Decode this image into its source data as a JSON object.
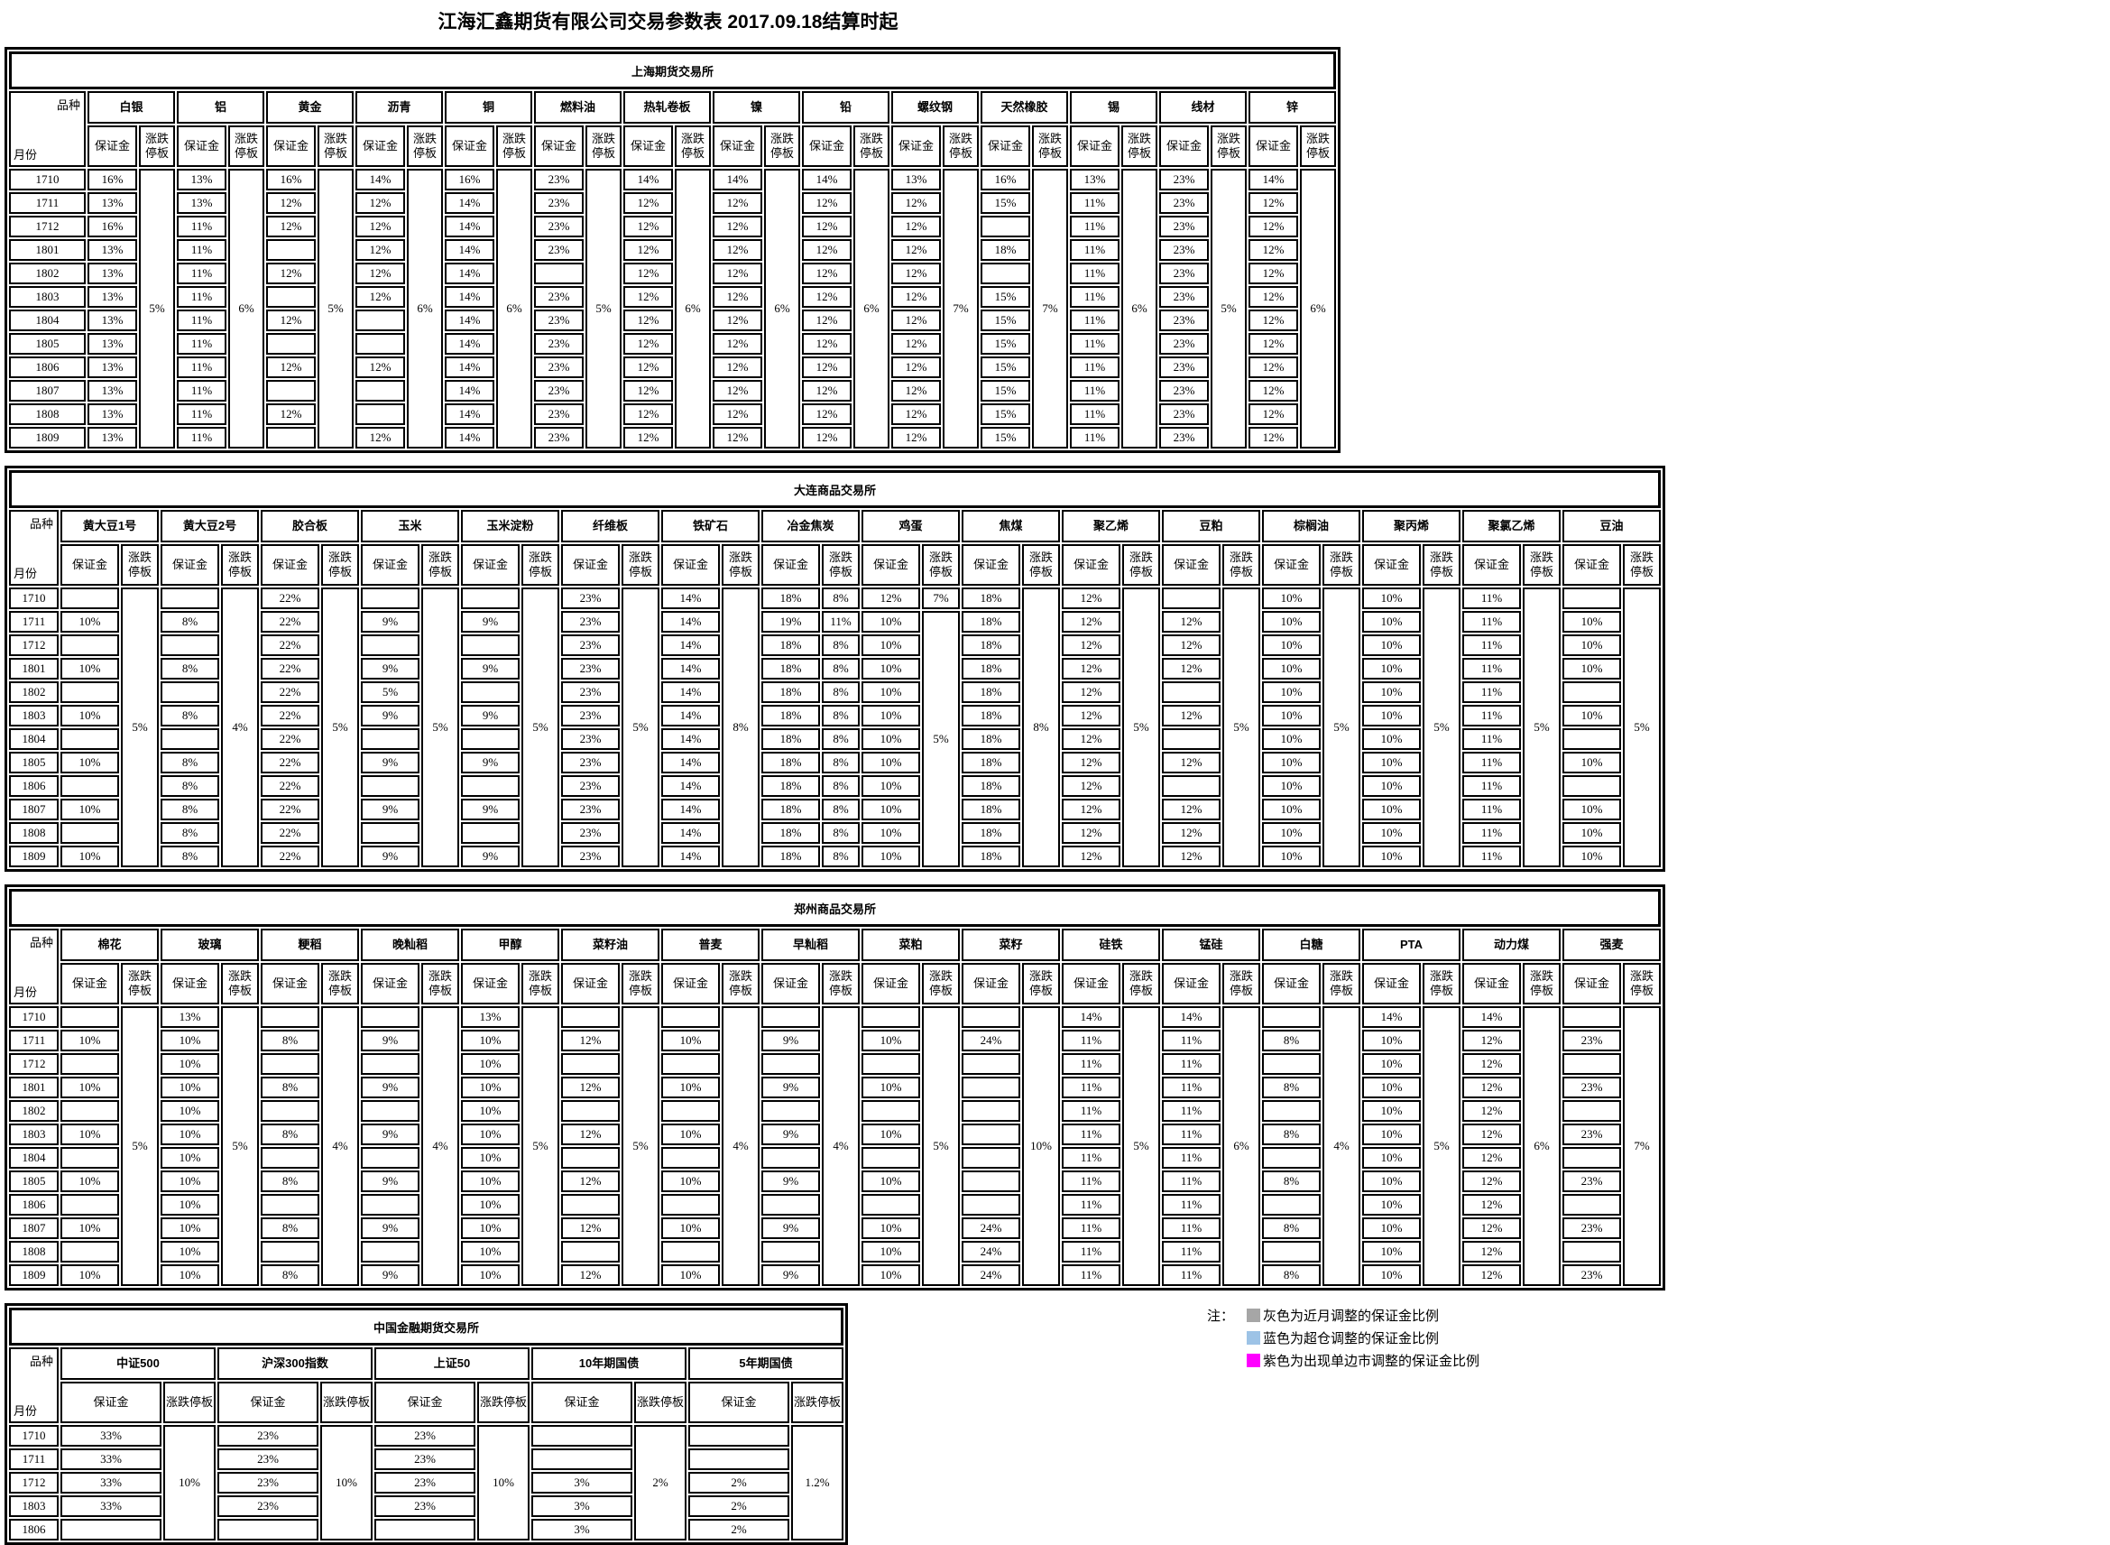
{
  "title": "江海汇鑫期货有限公司交易参数表 2017.09.18结算时起",
  "corner": {
    "top": "品种",
    "bottom": "月份"
  },
  "subheaders": {
    "margin": "保证金",
    "limit": "涨跌停板"
  },
  "colors": {
    "blue": "#BDD7EE",
    "magenta": "#FF00FF",
    "yellow": "#FFFF00",
    "gray": "#A6A6A6",
    "legend_blue": "#9DC3E6"
  },
  "exchanges": [
    {
      "name": "上海期货交易所",
      "months": [
        "1710",
        "1711",
        "1712",
        "1801",
        "1802",
        "1803",
        "1804",
        "1805",
        "1806",
        "1807",
        "1808",
        "1809"
      ],
      "products": [
        {
          "name": "白银",
          "limit": "5%",
          "margins": [
            "16%",
            "13%",
            "16%",
            "13%",
            "13%",
            "13%",
            "13%",
            "13%",
            "13%",
            "13%",
            "13%",
            "13%"
          ],
          "hl": {
            "2": "blue"
          }
        },
        {
          "name": "铝",
          "limit": "6%",
          "margins": [
            "13%",
            "13%",
            "11%",
            "11%",
            "11%",
            "11%",
            "11%",
            "11%",
            "11%",
            "11%",
            "11%",
            "11%"
          ],
          "hl": {
            "1": "blue",
            "2": "blue"
          }
        },
        {
          "name": "黄金",
          "limit": "5%",
          "margins": [
            "16%",
            "12%",
            "12%",
            "",
            "12%",
            "",
            "12%",
            "",
            "12%",
            "",
            "12%",
            ""
          ],
          "hl": {
            "2": "blue"
          }
        },
        {
          "name": "沥青",
          "limit": "6%",
          "margins": [
            "14%",
            "12%",
            "12%",
            "12%",
            "12%",
            "12%",
            "",
            "",
            "12%",
            "",
            "",
            "12%"
          ],
          "hl": {
            "2": "blue"
          }
        },
        {
          "name": "铜",
          "limit": "6%",
          "margins": [
            "16%",
            "14%",
            "14%",
            "14%",
            "14%",
            "14%",
            "14%",
            "14%",
            "14%",
            "14%",
            "14%",
            "14%"
          ],
          "hl": {
            "0": "blue",
            "1": "blue",
            "2": "blue"
          }
        },
        {
          "name": "燃料油",
          "limit": "5%",
          "margins": [
            "23%",
            "23%",
            "23%",
            "23%",
            "",
            "23%",
            "23%",
            "23%",
            "23%",
            "23%",
            "23%",
            "23%"
          ]
        },
        {
          "name": "热轧卷板",
          "limit": "6%",
          "margins": [
            "14%",
            "12%",
            "12%",
            "12%",
            "12%",
            "12%",
            "12%",
            "12%",
            "12%",
            "12%",
            "12%",
            "12%"
          ]
        },
        {
          "name": "镍",
          "limit": "6%",
          "margins": [
            "14%",
            "12%",
            "12%",
            "12%",
            "12%",
            "12%",
            "12%",
            "12%",
            "12%",
            "12%",
            "12%",
            "12%"
          ],
          "hl": {
            "3": "blue"
          }
        },
        {
          "name": "铅",
          "limit": "6%",
          "margins": [
            "14%",
            "12%",
            "12%",
            "12%",
            "12%",
            "12%",
            "12%",
            "12%",
            "12%",
            "12%",
            "12%",
            "12%"
          ]
        },
        {
          "name": "螺纹钢",
          "limit": "7%",
          "margins": [
            "13%",
            "12%",
            "12%",
            "12%",
            "12%",
            "12%",
            "12%",
            "12%",
            "12%",
            "12%",
            "12%",
            "12%"
          ],
          "hl": {
            "3": "blue"
          }
        },
        {
          "name": "天然橡胶",
          "limit": "7%",
          "margins": [
            "16%",
            "15%",
            "",
            "18%",
            "",
            "15%",
            "15%",
            "15%",
            "15%",
            "15%",
            "15%",
            "15%"
          ],
          "hl": {
            "3": "blue",
            "7": "blue"
          }
        },
        {
          "name": "锡",
          "limit": "6%",
          "margins": [
            "13%",
            "11%",
            "11%",
            "11%",
            "11%",
            "11%",
            "11%",
            "11%",
            "11%",
            "11%",
            "11%",
            "11%"
          ]
        },
        {
          "name": "线材",
          "limit": "5%",
          "margins": [
            "23%",
            "23%",
            "23%",
            "23%",
            "23%",
            "23%",
            "23%",
            "23%",
            "23%",
            "23%",
            "23%",
            "23%"
          ]
        },
        {
          "name": "锌",
          "limit": "6%",
          "margins": [
            "14%",
            "12%",
            "12%",
            "12%",
            "12%",
            "12%",
            "12%",
            "12%",
            "12%",
            "12%",
            "12%",
            "12%"
          ],
          "hl": {
            "1": "blue"
          }
        }
      ]
    },
    {
      "name": "大连商品交易所",
      "months": [
        "1710",
        "1711",
        "1712",
        "1801",
        "1802",
        "1803",
        "1804",
        "1805",
        "1806",
        "1807",
        "1808",
        "1809"
      ],
      "products": [
        {
          "name": "黄大豆1号",
          "limit": "5%",
          "margins": [
            "",
            "10%",
            "",
            "10%",
            "",
            "10%",
            "",
            "10%",
            "",
            "10%",
            "",
            "10%"
          ]
        },
        {
          "name": "黄大豆2号",
          "limit": "4%",
          "margins": [
            "",
            "8%",
            "",
            "8%",
            "",
            "8%",
            "",
            "8%",
            "8%",
            "8%",
            "8%",
            "8%"
          ]
        },
        {
          "name": "胶合板",
          "limit": "5%",
          "margins": [
            "22%",
            "22%",
            "22%",
            "22%",
            "22%",
            "22%",
            "22%",
            "22%",
            "22%",
            "22%",
            "22%",
            "22%"
          ]
        },
        {
          "name": "玉米",
          "limit": "5%",
          "margins": [
            "",
            "9%",
            "",
            "9%",
            "5%",
            "9%",
            "",
            "9%",
            "",
            "9%",
            "",
            "9%"
          ]
        },
        {
          "name": "玉米淀粉",
          "limit": "5%",
          "margins": [
            "",
            "9%",
            "",
            "9%",
            "",
            "9%",
            "",
            "9%",
            "",
            "9%",
            "",
            "9%"
          ]
        },
        {
          "name": "纤维板",
          "limit": "5%",
          "margins": [
            "23%",
            "23%",
            "23%",
            "23%",
            "23%",
            "23%",
            "23%",
            "23%",
            "23%",
            "23%",
            "23%",
            "23%"
          ]
        },
        {
          "name": "铁矿石",
          "limit": "8%",
          "margins": [
            "14%",
            "14%",
            "14%",
            "14%",
            "14%",
            "14%",
            "14%",
            "14%",
            "14%",
            "14%",
            "14%",
            "14%"
          ]
        },
        {
          "name": "冶金焦炭",
          "margins": [
            "18%",
            "19%",
            "18%",
            "18%",
            "18%",
            "18%",
            "18%",
            "18%",
            "18%",
            "18%",
            "18%",
            "18%"
          ],
          "limits": [
            "8%",
            "11%",
            "8%",
            "8%",
            "8%",
            "8%",
            "8%",
            "8%",
            "8%",
            "8%",
            "8%",
            "8%"
          ],
          "hl": {
            "1": "magenta"
          },
          "lhl": {
            "1": "magenta"
          }
        },
        {
          "name": "鸡蛋",
          "limit_cells": [
            {
              "text": "7%",
              "span": 1
            },
            {
              "text": "5%",
              "span": 11
            }
          ],
          "margins": [
            "12%",
            "10%",
            "10%",
            "10%",
            "10%",
            "10%",
            "10%",
            "10%",
            "10%",
            "10%",
            "10%",
            "10%"
          ]
        },
        {
          "name": "焦煤",
          "limit": "8%",
          "margins": [
            "18%",
            "18%",
            "18%",
            "18%",
            "18%",
            "18%",
            "18%",
            "18%",
            "18%",
            "18%",
            "18%",
            "18%"
          ]
        },
        {
          "name": "聚乙烯",
          "limit": "5%",
          "margins": [
            "12%",
            "12%",
            "12%",
            "12%",
            "12%",
            "12%",
            "12%",
            "12%",
            "12%",
            "12%",
            "12%",
            "12%"
          ]
        },
        {
          "name": "豆粕",
          "limit": "5%",
          "margins": [
            "",
            "12%",
            "12%",
            "12%",
            "",
            "12%",
            "",
            "12%",
            "",
            "12%",
            "12%",
            "12%"
          ]
        },
        {
          "name": "棕榈油",
          "limit": "5%",
          "margins": [
            "10%",
            "10%",
            "10%",
            "10%",
            "10%",
            "10%",
            "10%",
            "10%",
            "10%",
            "10%",
            "10%",
            "10%"
          ]
        },
        {
          "name": "聚丙烯",
          "limit": "5%",
          "margins": [
            "10%",
            "10%",
            "10%",
            "10%",
            "10%",
            "10%",
            "10%",
            "10%",
            "10%",
            "10%",
            "10%",
            "10%"
          ]
        },
        {
          "name": "聚氯乙烯",
          "limit": "5%",
          "margins": [
            "11%",
            "11%",
            "11%",
            "11%",
            "11%",
            "11%",
            "11%",
            "11%",
            "11%",
            "11%",
            "11%",
            "11%"
          ]
        },
        {
          "name": "豆油",
          "limit": "5%",
          "margins": [
            "",
            "10%",
            "10%",
            "10%",
            "",
            "10%",
            "",
            "10%",
            "",
            "10%",
            "10%",
            "10%"
          ]
        }
      ]
    },
    {
      "name": "郑州商品交易所",
      "months": [
        "1710",
        "1711",
        "1712",
        "1801",
        "1802",
        "1803",
        "1804",
        "1805",
        "1806",
        "1807",
        "1808",
        "1809"
      ],
      "products": [
        {
          "name": "棉花",
          "limit": "5%",
          "margins": [
            "",
            "10%",
            "",
            "10%",
            "",
            "10%",
            "",
            "10%",
            "",
            "10%",
            "",
            "10%"
          ]
        },
        {
          "name": "玻璃",
          "limit": "5%",
          "margins": [
            "13%",
            "10%",
            "10%",
            "10%",
            "10%",
            "10%",
            "10%",
            "10%",
            "10%",
            "10%",
            "10%",
            "10%"
          ]
        },
        {
          "name": "粳稻",
          "limit": "4%",
          "margins": [
            "",
            "8%",
            "",
            "8%",
            "",
            "8%",
            "",
            "8%",
            "",
            "8%",
            "",
            "8%"
          ]
        },
        {
          "name": "晚籼稻",
          "limit": "4%",
          "margins": [
            "",
            "9%",
            "",
            "9%",
            "",
            "9%",
            "",
            "9%",
            "",
            "9%",
            "",
            "9%"
          ]
        },
        {
          "name": "甲醇",
          "limit": "5%",
          "margins": [
            "13%",
            "10%",
            "10%",
            "10%",
            "10%",
            "10%",
            "10%",
            "10%",
            "10%",
            "10%",
            "10%",
            "10%"
          ]
        },
        {
          "name": "菜籽油",
          "limit": "5%",
          "margins": [
            "",
            "12%",
            "",
            "12%",
            "",
            "12%",
            "",
            "12%",
            "",
            "12%",
            "",
            "12%"
          ]
        },
        {
          "name": "普麦",
          "limit": "4%",
          "margins": [
            "",
            "10%",
            "",
            "10%",
            "",
            "10%",
            "",
            "10%",
            "",
            "10%",
            "",
            "10%"
          ]
        },
        {
          "name": "早籼稻",
          "limit": "4%",
          "margins": [
            "",
            "9%",
            "",
            "9%",
            "",
            "9%",
            "",
            "9%",
            "",
            "9%",
            "",
            "9%"
          ]
        },
        {
          "name": "菜粕",
          "limit": "5%",
          "margins": [
            "",
            "10%",
            "",
            "10%",
            "",
            "10%",
            "",
            "10%",
            "",
            "10%",
            "10%",
            "10%"
          ]
        },
        {
          "name": "菜籽",
          "limit": "10%",
          "margins": [
            "",
            "24%",
            "",
            "",
            "",
            "",
            "",
            "",
            "",
            "24%",
            "24%",
            "24%"
          ]
        },
        {
          "name": "硅铁",
          "limit": "5%",
          "margins": [
            "14%",
            "11%",
            "11%",
            "11%",
            "11%",
            "11%",
            "11%",
            "11%",
            "11%",
            "11%",
            "11%",
            "11%"
          ]
        },
        {
          "name": "锰硅",
          "limit": "6%",
          "margins": [
            "14%",
            "11%",
            "11%",
            "11%",
            "11%",
            "11%",
            "11%",
            "11%",
            "11%",
            "11%",
            "11%",
            "11%"
          ]
        },
        {
          "name": "白糖",
          "limit": "4%",
          "margins": [
            "",
            "8%",
            "",
            "8%",
            "",
            "8%",
            "",
            "8%",
            "",
            "8%",
            "",
            "8%"
          ]
        },
        {
          "name": "PTA",
          "limit": "5%",
          "margins": [
            "14%",
            "10%",
            "10%",
            "10%",
            "10%",
            "10%",
            "10%",
            "10%",
            "10%",
            "10%",
            "10%",
            "10%"
          ]
        },
        {
          "name": "动力煤",
          "limit": "6%",
          "margins": [
            "14%",
            "12%",
            "12%",
            "12%",
            "12%",
            "12%",
            "12%",
            "12%",
            "12%",
            "12%",
            "12%",
            "12%"
          ]
        },
        {
          "name": "强麦",
          "limit": "7%",
          "margins": [
            "",
            "23%",
            "",
            "23%",
            "",
            "23%",
            "",
            "23%",
            "",
            "23%",
            "",
            "23%"
          ]
        }
      ]
    },
    {
      "name": "中国金融期货交易所",
      "months": [
        "1710",
        "1711",
        "1712",
        "1803",
        "1806"
      ],
      "products": [
        {
          "name": "中证500",
          "limit": "10%",
          "margins": [
            "33%",
            "33%",
            "33%",
            "33%",
            ""
          ],
          "hl": {
            "0": "yellow",
            "1": "yellow",
            "2": "yellow",
            "3": "yellow"
          }
        },
        {
          "name": "沪深300指数",
          "limit": "10%",
          "margins": [
            "23%",
            "23%",
            "23%",
            "23%",
            ""
          ],
          "hl": {
            "0": "yellow",
            "1": "yellow",
            "2": "yellow",
            "3": "yellow"
          }
        },
        {
          "name": "上证50",
          "limit": "10%",
          "margins": [
            "23%",
            "23%",
            "23%",
            "23%",
            ""
          ],
          "hl": {
            "0": "yellow",
            "1": "yellow",
            "2": "yellow",
            "3": "yellow"
          }
        },
        {
          "name": "10年期国债",
          "limit": "2%",
          "margins": [
            "",
            "",
            "3%",
            "3%",
            "3%"
          ]
        },
        {
          "name": "5年期国债",
          "limit": "1.2%",
          "margins": [
            "",
            "",
            "2%",
            "2%",
            "2%"
          ]
        }
      ]
    }
  ],
  "legend": {
    "note_label": "注：",
    "items": [
      {
        "color": "#A6A6A6",
        "text": "灰色为近月调整的保证金比例"
      },
      {
        "color": "#9DC3E6",
        "text": "蓝色为超仓调整的保证金比例"
      },
      {
        "color": "#FF00FF",
        "text": "紫色为出现单边市调整的保证金比例"
      }
    ]
  }
}
